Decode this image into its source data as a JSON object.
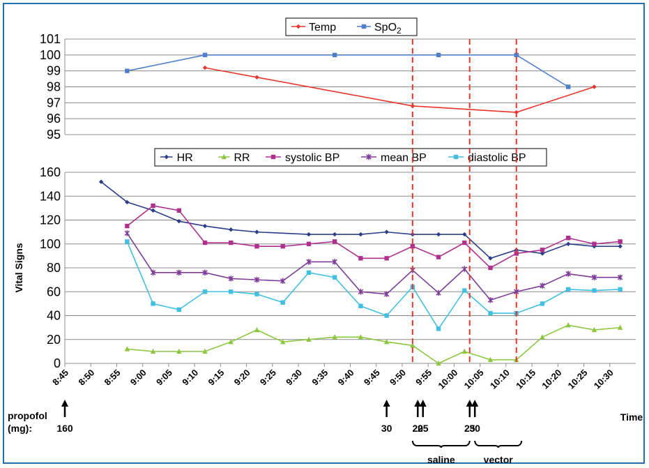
{
  "chart_data": [
    {
      "type": "line",
      "panel": "top",
      "xlim": [
        "8:45",
        "10:35"
      ],
      "ylim": [
        95,
        101
      ],
      "yticks": [
        "95",
        "96",
        "97",
        "98",
        "99",
        "100",
        "101"
      ],
      "grid": true,
      "legend_placement": "top-center",
      "series": [
        {
          "name": "Temp",
          "color": "#e8342b",
          "marker": "diamond",
          "x": [
            "9:12",
            "9:22",
            "9:52",
            "10:12",
            "10:27"
          ],
          "values": [
            99.2,
            98.6,
            96.8,
            96.4,
            98.0
          ]
        },
        {
          "name": "SpO2",
          "name_main": "SpO",
          "name_sub": "2",
          "color": "#4f7fc9",
          "marker": "square",
          "x": [
            "8:57",
            "9:12",
            "9:37",
            "9:57",
            "10:12",
            "10:22"
          ],
          "values": [
            99,
            100,
            100,
            100,
            100,
            98
          ]
        }
      ]
    },
    {
      "type": "line",
      "panel": "bottom",
      "ylabel": "Vital Signs",
      "xlabel": "Time",
      "ylim": [
        0,
        160
      ],
      "yticks": [
        "0",
        "20",
        "40",
        "60",
        "80",
        "100",
        "120",
        "140",
        "160"
      ],
      "xticks": [
        "8:45",
        "8:50",
        "8:55",
        "9:00",
        "9:05",
        "9:10",
        "9:15",
        "9:20",
        "9:25",
        "9:30",
        "9:35",
        "9:40",
        "9:45",
        "9:50",
        "9:55",
        "10:00",
        "10:05",
        "10:10",
        "10:15",
        "10:20",
        "10:25",
        "10:30"
      ],
      "grid": true,
      "legend_placement": "top-center",
      "series": [
        {
          "name": "HR",
          "color": "#2b3d87",
          "marker": "diamond",
          "x": [
            "8:52",
            "8:57",
            "9:02",
            "9:07",
            "9:12",
            "9:17",
            "9:22",
            "9:32",
            "9:37",
            "9:42",
            "9:47",
            "9:52",
            "9:57",
            "10:02",
            "10:07",
            "10:12",
            "10:17",
            "10:22",
            "10:27",
            "10:32"
          ],
          "values": [
            152,
            135,
            128,
            119,
            115,
            112,
            110,
            108,
            108,
            108,
            110,
            108,
            108,
            108,
            88,
            95,
            92,
            100,
            98,
            98
          ]
        },
        {
          "name": "RR",
          "color": "#8dc63f",
          "marker": "triangle",
          "x": [
            "8:57",
            "9:02",
            "9:07",
            "9:12",
            "9:17",
            "9:22",
            "9:27",
            "9:32",
            "9:37",
            "9:42",
            "9:47",
            "9:52",
            "9:57",
            "10:02",
            "10:07",
            "10:12",
            "10:17",
            "10:22",
            "10:27",
            "10:32"
          ],
          "values": [
            12,
            10,
            10,
            10,
            18,
            28,
            18,
            20,
            22,
            22,
            18,
            15,
            0,
            10,
            3,
            3,
            22,
            32,
            28,
            30
          ]
        },
        {
          "name": "systolic BP",
          "color": "#b0308e",
          "marker": "square",
          "x": [
            "8:57",
            "9:02",
            "9:07",
            "9:12",
            "9:17",
            "9:22",
            "9:27",
            "9:32",
            "9:37",
            "9:42",
            "9:47",
            "9:52",
            "9:57",
            "10:02",
            "10:07",
            "10:12",
            "10:17",
            "10:22",
            "10:27",
            "10:32"
          ],
          "values": [
            115,
            132,
            128,
            101,
            101,
            98,
            98,
            100,
            102,
            88,
            88,
            98,
            89,
            101,
            80,
            92,
            95,
            105,
            100,
            102
          ]
        },
        {
          "name": "mean BP",
          "color": "#7d3c98",
          "marker": "star",
          "x": [
            "8:57",
            "9:02",
            "9:07",
            "9:12",
            "9:17",
            "9:22",
            "9:27",
            "9:32",
            "9:37",
            "9:42",
            "9:47",
            "9:52",
            "9:57",
            "10:02",
            "10:07",
            "10:12",
            "10:17",
            "10:22",
            "10:27",
            "10:32"
          ],
          "values": [
            109,
            76,
            76,
            76,
            71,
            70,
            69,
            85,
            85,
            60,
            58,
            78,
            59,
            79,
            53,
            60,
            65,
            75,
            72,
            72
          ]
        },
        {
          "name": "diastolic BP",
          "color": "#41bfe0",
          "marker": "square",
          "x": [
            "8:57",
            "9:02",
            "9:07",
            "9:12",
            "9:17",
            "9:22",
            "9:27",
            "9:32",
            "9:37",
            "9:42",
            "9:47",
            "9:52",
            "9:57",
            "10:02",
            "10:07",
            "10:12",
            "10:17",
            "10:22",
            "10:27",
            "10:32"
          ],
          "values": [
            102,
            50,
            45,
            60,
            60,
            58,
            51,
            76,
            72,
            48,
            40,
            64,
            29,
            61,
            42,
            42,
            50,
            62,
            61,
            62
          ]
        }
      ]
    }
  ],
  "event_lines": {
    "color": "#e8342b",
    "x": [
      "9:52",
      "10:03",
      "10:12"
    ]
  },
  "propofol": {
    "label_line1": "propofol",
    "label_line2": "(mg):",
    "doses": [
      {
        "x": "8:45",
        "label": "160",
        "arrows": 1
      },
      {
        "x": "9:47",
        "label": "30",
        "arrows": 1
      },
      {
        "x": "9:53",
        "label": "20",
        "arrows": 1
      },
      {
        "x": "9:54",
        "label": "25",
        "arrows": 1
      },
      {
        "x": "10:03",
        "label": "25",
        "arrows": 1
      },
      {
        "x": "10:04",
        "label": "30",
        "arrows": 1
      }
    ]
  },
  "brackets": [
    {
      "label": "saline",
      "from": "9:52",
      "to": "10:03"
    },
    {
      "label": "vector",
      "from": "10:04",
      "to": "10:13"
    }
  ]
}
